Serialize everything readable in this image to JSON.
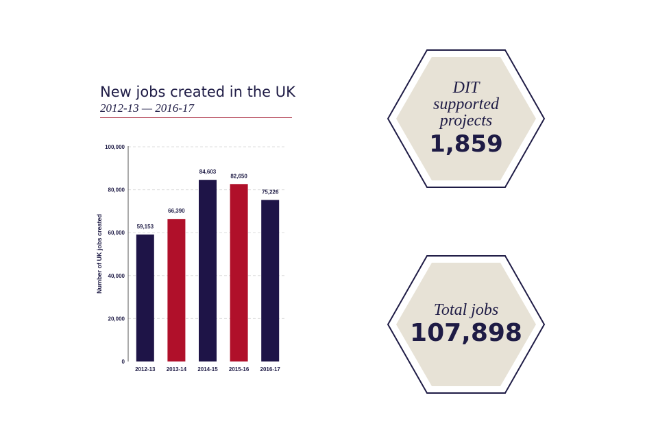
{
  "chart_title": "New jobs created in the UK",
  "chart_subtitle": "2012-13 — 2016-17",
  "chart_data": {
    "type": "bar",
    "title": "New jobs created in the UK",
    "subtitle": "2012-13 — 2016-17",
    "xlabel": "",
    "ylabel": "Number of UK jobs created",
    "ylim": [
      0,
      100000
    ],
    "yticks": [
      "0",
      "20,000",
      "40,000",
      "60,000",
      "80,000",
      "100,000"
    ],
    "grid": true,
    "categories": [
      "2012-13",
      "2013-14",
      "2014-15",
      "2015-16",
      "2016-17"
    ],
    "values": [
      59153,
      66390,
      84603,
      82650,
      75226
    ],
    "data_labels": [
      "59,153",
      "66,390",
      "84,603",
      "82,650",
      "75,226"
    ],
    "bar_colors": [
      "#1e1447",
      "#b0102a",
      "#1e1447",
      "#b0102a",
      "#1e1447"
    ]
  },
  "stats": {
    "projects": {
      "label": "DIT supported projects",
      "value": "1,859"
    },
    "total_jobs": {
      "label": "Total jobs",
      "value": "107,898"
    }
  },
  "colors": {
    "navy": "#1e1447",
    "red": "#b0102a",
    "hex_fill": "#e7e2d6",
    "hex_outline": "#1e1b45",
    "gridline": "#dcdcdc"
  }
}
